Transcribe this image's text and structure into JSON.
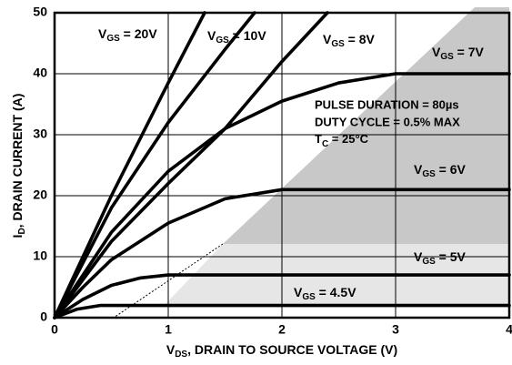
{
  "chart_data": {
    "type": "line",
    "xlabel": "VDS, DRAIN TO SOURCE VOLTAGE (V)",
    "ylabel": "ID, DRAIN CURRENT (A)",
    "annotations": [
      "PULSE DURATION = 80µs",
      "DUTY CYCLE = 0.5% MAX",
      "TC = 25°C"
    ],
    "xlim": [
      0,
      4
    ],
    "xticks": [
      0,
      1,
      2,
      3,
      4
    ],
    "ylim": [
      0,
      50
    ],
    "yticks": [
      0,
      10,
      20,
      30,
      40,
      50
    ],
    "grid": true,
    "series": [
      {
        "name": "VGS = 20V",
        "color": "#000000",
        "x": [
          0,
          0.5,
          1,
          1.32
        ],
        "values": [
          0,
          20,
          38.5,
          50
        ]
      },
      {
        "name": "VGS = 10V",
        "color": "#000000",
        "x": [
          0,
          0.5,
          1,
          1.5,
          1.76
        ],
        "values": [
          0,
          18,
          32,
          44,
          50
        ]
      },
      {
        "name": "VGS = 8V",
        "color": "#000000",
        "x": [
          0,
          0.5,
          1,
          1.5,
          2,
          2.4
        ],
        "values": [
          0,
          12.5,
          22,
          31,
          42,
          50
        ]
      },
      {
        "name": "VGS = 7V",
        "color": "#000000",
        "x": [
          0,
          0.5,
          1,
          1.5,
          2,
          2.5,
          3,
          4
        ],
        "values": [
          0,
          14,
          24,
          31,
          35.5,
          38.5,
          40,
          40
        ]
      },
      {
        "name": "VGS = 6V",
        "color": "#000000",
        "x": [
          0,
          0.25,
          0.5,
          1,
          1.5,
          2,
          4
        ],
        "values": [
          0,
          5,
          9.5,
          15.5,
          19.5,
          21,
          21
        ]
      },
      {
        "name": "VGS = 5V",
        "color": "#000000",
        "x": [
          0,
          0.25,
          0.5,
          0.75,
          1,
          4
        ],
        "values": [
          0,
          3,
          5.3,
          6.5,
          7,
          7
        ]
      },
      {
        "name": "VGS = 4.5V",
        "color": "#000000",
        "x": [
          0,
          0.2,
          0.4,
          4
        ],
        "values": [
          0,
          1.4,
          2,
          2
        ]
      }
    ]
  }
}
